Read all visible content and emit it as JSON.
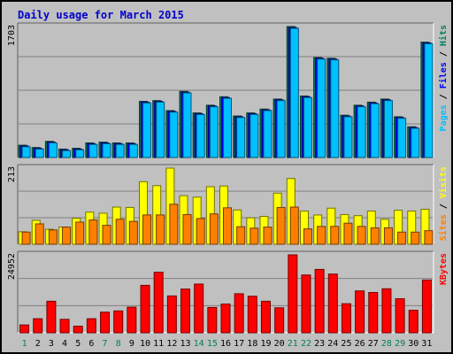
{
  "chart_data": {
    "type": "bar",
    "title": "Daily usage for March 2015",
    "x": [
      "1",
      "2",
      "3",
      "4",
      "5",
      "6",
      "7",
      "8",
      "9",
      "10",
      "11",
      "12",
      "13",
      "14",
      "15",
      "16",
      "17",
      "18",
      "19",
      "20",
      "21",
      "22",
      "23",
      "24",
      "25",
      "26",
      "27",
      "28",
      "29",
      "30",
      "31"
    ],
    "weekend_days": [
      "1",
      "7",
      "8",
      "14",
      "15",
      "21",
      "22",
      "28",
      "29"
    ],
    "panels": [
      {
        "id": "pages-files-hits",
        "max_label": "1703",
        "ymax": 1703,
        "axis_label": [
          {
            "text": "Pages",
            "color": "#00c0ff"
          },
          {
            "text": " / ",
            "color": "#000000"
          },
          {
            "text": "Files",
            "color": "#0000ff"
          },
          {
            "text": " / ",
            "color": "#000000"
          },
          {
            "text": "Hits",
            "color": "#00805c"
          }
        ],
        "series": [
          {
            "name": "Hits",
            "color": "#00805c",
            "values": [
              160,
              130,
              210,
              110,
              120,
              190,
              200,
              190,
              190,
              730,
              740,
              610,
              860,
              580,
              680,
              790,
              540,
              580,
              630,
              760,
              1703,
              800,
              1300,
              1290,
              550,
              680,
              720,
              760,
              530,
              400,
              1500
            ]
          },
          {
            "name": "Files",
            "color": "#0000ff",
            "values": [
              150,
              120,
              200,
              100,
              110,
              180,
              190,
              180,
              180,
              720,
              730,
              600,
              850,
              570,
              670,
              780,
              530,
              570,
              620,
              750,
              1690,
              790,
              1290,
              1280,
              540,
              670,
              710,
              750,
              520,
              390,
              1490
            ]
          },
          {
            "name": "Pages",
            "color": "#00c0ff",
            "values": [
              140,
              110,
              190,
              90,
              100,
              170,
              180,
              170,
              170,
              710,
              720,
              590,
              840,
              560,
              660,
              770,
              520,
              560,
              610,
              740,
              1680,
              780,
              1280,
              1270,
              530,
              660,
              700,
              740,
              510,
              380,
              1480
            ]
          }
        ]
      },
      {
        "id": "visits-sites",
        "max_label": "213",
        "ymax": 213,
        "axis_label": [
          {
            "text": "Sites",
            "color": "#ff8000"
          },
          {
            "text": " / ",
            "color": "#000000"
          },
          {
            "text": "Visits",
            "color": "#ffff00"
          }
        ],
        "series": [
          {
            "name": "Visits",
            "color": "#ffff00",
            "values": [
              35,
              67,
              42,
              48,
              73,
              90,
              87,
              104,
              103,
              175,
              164,
              213,
              136,
              132,
              161,
              163,
              96,
              74,
              78,
              143,
              184,
              93,
              82,
              101,
              83,
              80,
              93,
              70,
              95,
              93,
              98
            ]
          },
          {
            "name": "Sites",
            "color": "#ff8000",
            "values": [
              34,
              57,
              40,
              48,
              62,
              68,
              53,
              70,
              64,
              82,
              82,
              112,
              83,
              72,
              85,
              102,
              49,
              45,
              48,
              103,
              104,
              43,
              50,
              50,
              59,
              50,
              46,
              46,
              34,
              34,
              38
            ]
          }
        ]
      },
      {
        "id": "kbytes",
        "max_label": "24952",
        "ymax": 24952,
        "axis_label": [
          {
            "text": "KBytes",
            "color": "#ff0000"
          }
        ],
        "series": [
          {
            "name": "KBytes",
            "color": "#ff0000",
            "values": [
              2500,
              4500,
              10100,
              4300,
              2100,
              4500,
              6600,
              7000,
              8200,
              15200,
              19400,
              11800,
              14000,
              15600,
              8100,
              9200,
              12500,
              11700,
              10100,
              8000,
              24952,
              18500,
              20300,
              18800,
              9300,
              13400,
              12900,
              14100,
              10900,
              7200,
              16900
            ]
          }
        ]
      }
    ]
  }
}
